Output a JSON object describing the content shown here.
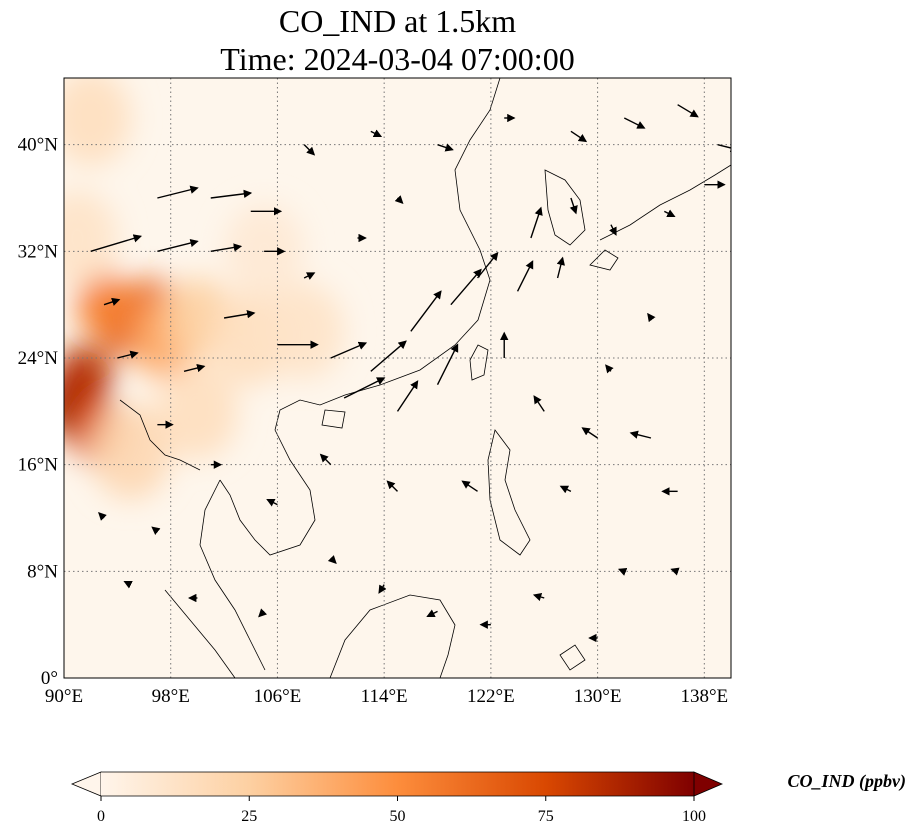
{
  "title": {
    "line1": "CO_IND at 1.5km",
    "line2": "Time: 2024-03-04 07:00:00"
  },
  "map": {
    "lon_range": [
      90,
      140
    ],
    "lat_range": [
      0,
      45
    ],
    "lon_ticks": [
      {
        "value": 90,
        "label": "90°E"
      },
      {
        "value": 98,
        "label": "98°E"
      },
      {
        "value": 106,
        "label": "106°E"
      },
      {
        "value": 114,
        "label": "114°E"
      },
      {
        "value": 122,
        "label": "122°E"
      },
      {
        "value": 130,
        "label": "130°E"
      },
      {
        "value": 138,
        "label": "138°E"
      }
    ],
    "lat_ticks": [
      {
        "value": 0,
        "label": "0°"
      },
      {
        "value": 8,
        "label": "8°N"
      },
      {
        "value": 16,
        "label": "16°N"
      },
      {
        "value": 24,
        "label": "24°N"
      },
      {
        "value": 32,
        "label": "32°N"
      },
      {
        "value": 40,
        "label": "40°N"
      }
    ],
    "gridlines": true,
    "field": "CO_IND",
    "level": "1.5km",
    "colormap": [
      "#fff5eb",
      "#fdd0a2",
      "#fd8d3c",
      "#d94801",
      "#7f0000"
    ],
    "high_concentration_areas": [
      {
        "lon": 90.5,
        "lat": 20.5,
        "value": 95
      },
      {
        "lon": 91.5,
        "lat": 22.5,
        "value": 85
      },
      {
        "lon": 92.5,
        "lat": 18.5,
        "value": 70
      },
      {
        "lon": 94.5,
        "lat": 26.5,
        "value": 70
      },
      {
        "lon": 96.5,
        "lat": 27.5,
        "value": 65
      },
      {
        "lon": 93.0,
        "lat": 28.0,
        "value": 55
      },
      {
        "lon": 97.5,
        "lat": 25.5,
        "value": 40
      },
      {
        "lon": 100.0,
        "lat": 27.0,
        "value": 25
      },
      {
        "lon": 104.0,
        "lat": 25.5,
        "value": 15
      },
      {
        "lon": 108.0,
        "lat": 26.0,
        "value": 12
      },
      {
        "lon": 92.0,
        "lat": 42.0,
        "value": 15
      },
      {
        "lon": 95.0,
        "lat": 17.0,
        "value": 20
      },
      {
        "lon": 100.0,
        "lat": 20.0,
        "value": 15
      },
      {
        "lon": 91.0,
        "lat": 33.0,
        "value": 12
      },
      {
        "lon": 105.0,
        "lat": 32.0,
        "value": 8
      }
    ],
    "wind_vectors": [
      {
        "lon": 97,
        "lat": 36,
        "u": 4,
        "v": 1
      },
      {
        "lon": 101,
        "lat": 36,
        "u": 4,
        "v": 0.5
      },
      {
        "lon": 104,
        "lat": 35,
        "u": 3,
        "v": 0
      },
      {
        "lon": 92,
        "lat": 32,
        "u": 5,
        "v": 1.5
      },
      {
        "lon": 97,
        "lat": 32,
        "u": 4,
        "v": 1
      },
      {
        "lon": 101,
        "lat": 32,
        "u": 3,
        "v": 0.5
      },
      {
        "lon": 105,
        "lat": 32,
        "u": 2,
        "v": 0
      },
      {
        "lon": 102,
        "lat": 27,
        "u": 3,
        "v": 0.5
      },
      {
        "lon": 106,
        "lat": 25,
        "u": 4,
        "v": 0
      },
      {
        "lon": 110,
        "lat": 24,
        "u": 3.5,
        "v": 1.5
      },
      {
        "lon": 111,
        "lat": 21,
        "u": 4,
        "v": 2
      },
      {
        "lon": 113,
        "lat": 23,
        "u": 3.5,
        "v": 3
      },
      {
        "lon": 116,
        "lat": 26,
        "u": 3,
        "v": 4
      },
      {
        "lon": 119,
        "lat": 28,
        "u": 3,
        "v": 3.5
      },
      {
        "lon": 115,
        "lat": 20,
        "u": 2,
        "v": 3
      },
      {
        "lon": 118,
        "lat": 22,
        "u": 2,
        "v": 4
      },
      {
        "lon": 121,
        "lat": 30,
        "u": 2,
        "v": 2.5
      },
      {
        "lon": 124,
        "lat": 29,
        "u": 1.5,
        "v": 3
      },
      {
        "lon": 125,
        "lat": 33,
        "u": 1,
        "v": 3
      },
      {
        "lon": 127,
        "lat": 30,
        "u": 0.5,
        "v": 2
      },
      {
        "lon": 123,
        "lat": 24,
        "u": 0,
        "v": 2.5
      },
      {
        "lon": 126,
        "lat": 20,
        "u": -1,
        "v": 1.5
      },
      {
        "lon": 130,
        "lat": 18,
        "u": -1.5,
        "v": 1
      },
      {
        "lon": 134,
        "lat": 18,
        "u": -2,
        "v": 0.5
      },
      {
        "lon": 136,
        "lat": 14,
        "u": -1.5,
        "v": 0
      },
      {
        "lon": 128,
        "lat": 14,
        "u": -1,
        "v": 0.5
      },
      {
        "lon": 121,
        "lat": 14,
        "u": -1.5,
        "v": 1
      },
      {
        "lon": 115,
        "lat": 14,
        "u": -1,
        "v": 1
      },
      {
        "lon": 110,
        "lat": 16,
        "u": -1,
        "v": 1
      },
      {
        "lon": 106,
        "lat": 13,
        "u": -1,
        "v": 0.5
      },
      {
        "lon": 101,
        "lat": 16,
        "u": 1,
        "v": 0
      },
      {
        "lon": 97,
        "lat": 19,
        "u": 1.5,
        "v": 0
      },
      {
        "lon": 99,
        "lat": 23,
        "u": 2,
        "v": 0.5
      },
      {
        "lon": 94,
        "lat": 24,
        "u": 2,
        "v": 0.5
      },
      {
        "lon": 93,
        "lat": 28,
        "u": 1.5,
        "v": 0.5
      },
      {
        "lon": 108,
        "lat": 40,
        "u": 1,
        "v": -1
      },
      {
        "lon": 113,
        "lat": 41,
        "u": 1,
        "v": -0.5
      },
      {
        "lon": 118,
        "lat": 40,
        "u": 1.5,
        "v": -0.5
      },
      {
        "lon": 123,
        "lat": 42,
        "u": 1,
        "v": 0
      },
      {
        "lon": 128,
        "lat": 41,
        "u": 1.5,
        "v": -1
      },
      {
        "lon": 132,
        "lat": 42,
        "u": 2,
        "v": -1
      },
      {
        "lon": 136,
        "lat": 43,
        "u": 2,
        "v": -1.2
      },
      {
        "lon": 139,
        "lat": 40,
        "u": 2,
        "v": -0.5
      },
      {
        "lon": 138,
        "lat": 37,
        "u": 2,
        "v": 0
      },
      {
        "lon": 135,
        "lat": 35,
        "u": 1,
        "v": -0.5
      },
      {
        "lon": 131,
        "lat": 34,
        "u": 0.5,
        "v": -1
      },
      {
        "lon": 128,
        "lat": 36,
        "u": 0.5,
        "v": -1.5
      },
      {
        "lon": 115,
        "lat": 36,
        "u": 0.5,
        "v": -0.5
      },
      {
        "lon": 112,
        "lat": 33,
        "u": 0.8,
        "v": 0
      },
      {
        "lon": 108,
        "lat": 30,
        "u": 1,
        "v": 0.5
      },
      {
        "lon": 110,
        "lat": 9,
        "u": 0.5,
        "v": -0.5
      },
      {
        "lon": 114,
        "lat": 7,
        "u": -0.5,
        "v": -0.8
      },
      {
        "lon": 118,
        "lat": 5,
        "u": -1,
        "v": -0.5
      },
      {
        "lon": 122,
        "lat": 4,
        "u": -1,
        "v": 0
      },
      {
        "lon": 126,
        "lat": 6,
        "u": -1,
        "v": 0.3
      },
      {
        "lon": 130,
        "lat": 3,
        "u": -0.8,
        "v": 0
      },
      {
        "lon": 105,
        "lat": 5,
        "u": -0.5,
        "v": -0.5
      },
      {
        "lon": 100,
        "lat": 6,
        "u": -0.8,
        "v": 0
      },
      {
        "lon": 95,
        "lat": 7,
        "u": -0.6,
        "v": 0.3
      },
      {
        "lon": 93,
        "lat": 12,
        "u": -0.5,
        "v": 0.5
      },
      {
        "lon": 97,
        "lat": 11,
        "u": -0.5,
        "v": 0.4
      },
      {
        "lon": 132,
        "lat": 8,
        "u": -0.5,
        "v": 0.2
      },
      {
        "lon": 136,
        "lat": 8,
        "u": -0.6,
        "v": 0.2
      },
      {
        "lon": 134,
        "lat": 27,
        "u": -0.3,
        "v": 0.4
      },
      {
        "lon": 131,
        "lat": 23,
        "u": -0.5,
        "v": 0.6
      }
    ]
  },
  "colorbar": {
    "label": "CO_IND (ppbv)",
    "min": 0,
    "max": 100,
    "ticks": [
      {
        "value": 0,
        "label": "0"
      },
      {
        "value": 25,
        "label": "25"
      },
      {
        "value": 50,
        "label": "50"
      },
      {
        "value": 75,
        "label": "75"
      },
      {
        "value": 100,
        "label": "100"
      }
    ],
    "extend": "both"
  }
}
